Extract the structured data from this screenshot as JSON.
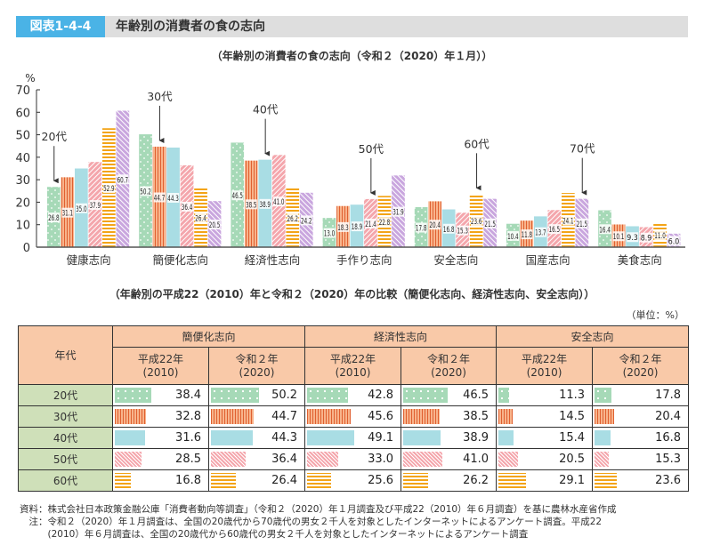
{
  "header": {
    "badge": "図表1-4-4",
    "title": "年齢別の消費者の食の志向"
  },
  "chart_data": {
    "type": "bar",
    "title": "（年齢別の消費者の食の志向（令和２（2020）年１月））",
    "ylabel": "%",
    "xlabel": "",
    "ylim": [
      0,
      70
    ],
    "yticks": [
      0,
      10,
      20,
      30,
      40,
      50,
      60,
      70
    ],
    "grid": false,
    "categories": [
      "健康志向",
      "簡便化志向",
      "経済性志向",
      "手作り志向",
      "安全志向",
      "国産志向",
      "美食志向"
    ],
    "series": [
      {
        "name": "20代",
        "pattern": "dot",
        "color": "#a6d9b7",
        "values": [
          26.8,
          50.2,
          46.5,
          13.0,
          17.8,
          10.4,
          16.4
        ]
      },
      {
        "name": "30代",
        "pattern": "vline",
        "color": "#f8b48c",
        "values": [
          31.1,
          44.7,
          38.5,
          18.3,
          20.4,
          11.8,
          10.1
        ]
      },
      {
        "name": "40代",
        "pattern": "solid",
        "color": "#a9dde4",
        "values": [
          35.0,
          44.3,
          38.9,
          18.9,
          16.8,
          13.7,
          9.3
        ]
      },
      {
        "name": "50代",
        "pattern": "diag",
        "color": "#f4a6ac",
        "values": [
          37.9,
          36.4,
          41.0,
          21.4,
          15.3,
          16.5,
          8.9
        ]
      },
      {
        "name": "60代",
        "pattern": "hline",
        "color": "#f3a417",
        "values": [
          52.9,
          26.4,
          26.2,
          22.8,
          23.6,
          24.1,
          11.0
        ]
      },
      {
        "name": "70代",
        "pattern": "diag2",
        "color": "#c9a6de",
        "values": [
          60.7,
          20.5,
          24.2,
          31.9,
          21.5,
          21.5,
          6.0
        ]
      }
    ],
    "annotations": [
      {
        "text": "20代",
        "category": 0,
        "series": 0
      },
      {
        "text": "30代",
        "category": 1,
        "series": 1
      },
      {
        "text": "40代",
        "category": 2,
        "series": 2
      },
      {
        "text": "50代",
        "category": 3,
        "series": 3
      },
      {
        "text": "60代",
        "category": 4,
        "series": 4
      },
      {
        "text": "70代",
        "category": 5,
        "series": 5
      }
    ]
  },
  "table": {
    "title": "（年齢別の平成22（2010）年と令和２（2020）年の比較（簡便化志向、経済性志向、安全志向））",
    "unit": "（単位：%）",
    "age_header": "年代",
    "groups": [
      "簡便化志向",
      "経済性志向",
      "安全志向"
    ],
    "sub_headers": [
      {
        "line1": "平成22年",
        "line2": "(2010)"
      },
      {
        "line1": "令和２年",
        "line2": "(2020)"
      }
    ],
    "rows": [
      {
        "age": "20代",
        "pattern": "dot",
        "values": [
          "38.4",
          "50.2",
          "42.8",
          "46.5",
          "11.3",
          "17.8"
        ]
      },
      {
        "age": "30代",
        "pattern": "vline",
        "values": [
          "32.8",
          "44.7",
          "45.6",
          "38.5",
          "14.5",
          "20.4"
        ]
      },
      {
        "age": "40代",
        "pattern": "solid",
        "values": [
          "31.6",
          "44.3",
          "49.1",
          "38.9",
          "15.4",
          "16.8"
        ]
      },
      {
        "age": "50代",
        "pattern": "diag",
        "values": [
          "28.5",
          "36.4",
          "33.0",
          "41.0",
          "20.5",
          "15.3"
        ]
      },
      {
        "age": "60代",
        "pattern": "hline",
        "values": [
          "16.8",
          "26.4",
          "25.6",
          "26.2",
          "29.1",
          "23.6"
        ]
      }
    ]
  },
  "notes": {
    "source": "資料：株式会社日本政策金融公庫「消費者動向等調査」（令和２（2020）年１月調査及び平成22（2010）年６月調査）を基に農林水産省作成",
    "note_line1": "　注：令和２（2020）年１月調査は、全国の20歳代から70歳代の男女２千人を対象としたインターネットによるアンケート調査。平成22",
    "note_line2": "　　　(2010）年６月調査は、全国の20歳代から60歳代の男女２千人を対象としたインターネットによるアンケート調査"
  }
}
